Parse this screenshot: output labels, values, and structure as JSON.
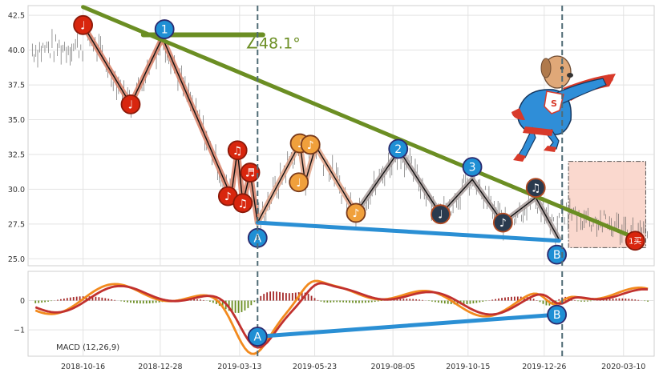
{
  "chart_data": [
    {
      "type": "candlestick",
      "ylim": [
        24.5,
        43.2
      ],
      "y_ticks": [
        25.0,
        27.5,
        30.0,
        32.5,
        35.0,
        37.5,
        40.0,
        42.5
      ],
      "x_ticks": [
        "2018-10-16",
        "2018-12-28",
        "2019-03-13",
        "2019-05-23",
        "2019-08-05",
        "2019-10-15",
        "2019-12-26",
        "2020-03-10"
      ],
      "x_ticks_day_index": [
        0,
        73,
        148,
        219,
        293,
        364,
        436,
        511
      ],
      "x_range_days": [
        -52,
        540
      ],
      "zigzag": [
        {
          "day": 0,
          "price": 41.8
        },
        {
          "day": 45,
          "price": 36.1
        },
        {
          "day": 75,
          "price": 40.9
        },
        {
          "day": 140,
          "price": 29.5
        },
        {
          "day": 146,
          "price": 32.8
        },
        {
          "day": 151,
          "price": 29.0
        },
        {
          "day": 158,
          "price": 31.2
        },
        {
          "day": 165,
          "price": 27.6
        },
        {
          "day": 205,
          "price": 33.3
        },
        {
          "day": 210,
          "price": 30.5
        },
        {
          "day": 220,
          "price": 33.1
        },
        {
          "day": 258,
          "price": 28.3
        },
        {
          "day": 299,
          "price": 32.8
        },
        {
          "day": 338,
          "price": 28.2
        },
        {
          "day": 368,
          "price": 30.7
        },
        {
          "day": 397,
          "price": 27.6
        },
        {
          "day": 428,
          "price": 29.4
        },
        {
          "day": 450,
          "price": 26.4
        }
      ],
      "markers": [
        {
          "label": "♩",
          "kind": "red",
          "day": 0,
          "price": 41.8
        },
        {
          "label": "♩",
          "kind": "red",
          "day": 45,
          "price": 36.1
        },
        {
          "label": "1",
          "kind": "blue",
          "day": 77,
          "price": 41.5
        },
        {
          "label": "♪",
          "kind": "red",
          "day": 137,
          "price": 29.5
        },
        {
          "label": "♫",
          "kind": "red",
          "day": 146,
          "price": 32.8
        },
        {
          "label": "♫",
          "kind": "red",
          "day": 151,
          "price": 29.0
        },
        {
          "label": "♬",
          "kind": "red",
          "day": 158,
          "price": 31.2
        },
        {
          "label": "A",
          "kind": "blue",
          "day": 165,
          "price": 26.5
        },
        {
          "label": "♩",
          "kind": "orange",
          "day": 205,
          "price": 33.3
        },
        {
          "label": "♩",
          "kind": "orange",
          "day": 204,
          "price": 30.5
        },
        {
          "label": "♪",
          "kind": "orange",
          "day": 215,
          "price": 33.2
        },
        {
          "label": "♪",
          "kind": "orange",
          "day": 258,
          "price": 28.3
        },
        {
          "label": "2",
          "kind": "blue",
          "day": 298,
          "price": 32.9
        },
        {
          "label": "♩",
          "kind": "dark",
          "day": 338,
          "price": 28.2
        },
        {
          "label": "3",
          "kind": "blue",
          "day": 368,
          "price": 31.6
        },
        {
          "label": "♪",
          "kind": "dark",
          "day": 397,
          "price": 27.6
        },
        {
          "label": "♫",
          "kind": "dark",
          "day": 428,
          "price": 30.1
        },
        {
          "label": "B",
          "kind": "blue",
          "day": 448,
          "price": 25.3
        },
        {
          "label": "1买",
          "kind": "red",
          "day": 522,
          "price": 26.3
        }
      ],
      "trend_line": {
        "from": {
          "day": 0,
          "price": 43.1
        },
        "to": {
          "day": 522,
          "price": 26.5
        }
      },
      "support_line": {
        "from": {
          "day": 165,
          "price": 27.6
        },
        "to": {
          "day": 450,
          "price": 26.3
        }
      },
      "flat_line": {
        "from": {
          "day": 57,
          "price": 41.1
        },
        "to": {
          "day": 170,
          "price": 41.1
        }
      },
      "angle_label": "∠48.1°",
      "vertical_lines_day": [
        165,
        453
      ],
      "buy_zone": {
        "day_from": 459,
        "day_to": 532,
        "price_from": 25.8,
        "price_to": 32.0
      }
    },
    {
      "type": "line",
      "label": "MACD (12,26,9)",
      "ylim": [
        -1.9,
        1.0
      ],
      "y_ticks": [
        -1,
        0
      ],
      "markers": [
        {
          "label": "A",
          "kind": "blue",
          "day": 165,
          "value": -1.23
        },
        {
          "label": "B",
          "kind": "blue",
          "day": 448,
          "value": -0.48
        }
      ],
      "divergence_line": {
        "from": {
          "day": 165,
          "value": -1.23
        },
        "to": {
          "day": 448,
          "value": -0.48
        }
      }
    }
  ]
}
